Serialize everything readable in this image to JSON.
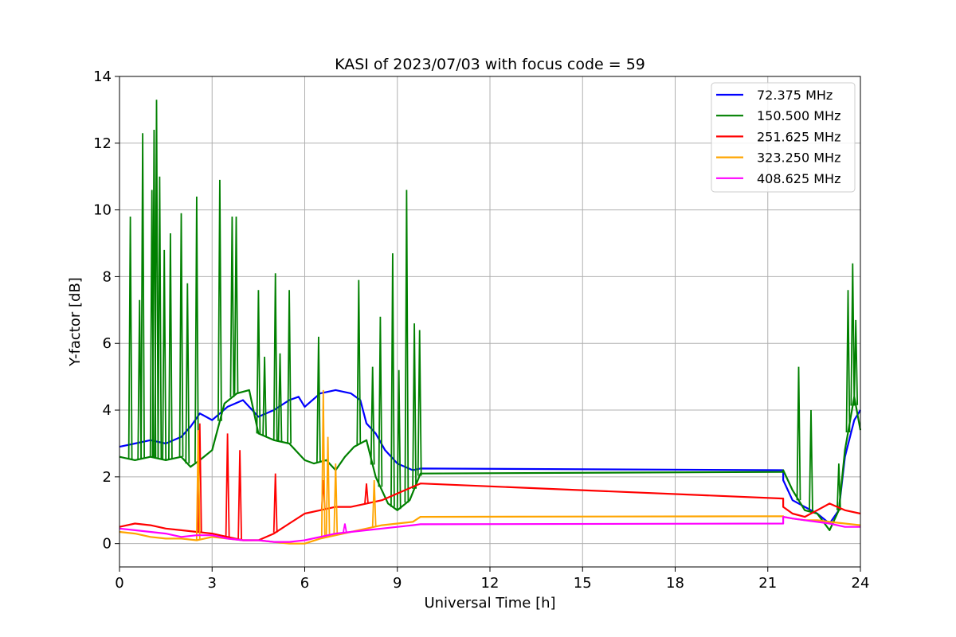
{
  "chart_data": {
    "type": "line",
    "title": "KASI of 2023/07/03 with focus code = 59",
    "xlabel": "Universal Time [h]",
    "ylabel": "Y-factor [dB]",
    "xlim": [
      0,
      24
    ],
    "ylim": [
      -0.7,
      14
    ],
    "xticks": [
      0,
      3,
      6,
      9,
      12,
      15,
      18,
      21,
      24
    ],
    "yticks": [
      0,
      2,
      4,
      6,
      8,
      10,
      12,
      14
    ],
    "grid": true,
    "legend_position": "top-right",
    "series": [
      {
        "name": " 72.375 MHz",
        "color": "#0000ff",
        "x": [
          0,
          0.5,
          1,
          1.5,
          2,
          2.3,
          2.6,
          3,
          3.5,
          4,
          4.5,
          5,
          5.5,
          5.8,
          6,
          6.5,
          7,
          7.5,
          7.8,
          8,
          8.3,
          8.6,
          9,
          9.5,
          9.75,
          21.5,
          21.5,
          21.8,
          22.2,
          22.6,
          23,
          23.3,
          23.5,
          23.8,
          24
        ],
        "y": [
          2.9,
          3.0,
          3.1,
          3.0,
          3.2,
          3.5,
          3.9,
          3.7,
          4.1,
          4.3,
          3.8,
          4.0,
          4.3,
          4.4,
          4.1,
          4.5,
          4.6,
          4.5,
          4.3,
          3.6,
          3.3,
          2.8,
          2.4,
          2.2,
          2.25,
          2.2,
          1.9,
          1.3,
          1.1,
          0.9,
          0.6,
          1.0,
          2.6,
          3.7,
          4.0
        ],
        "spikes": []
      },
      {
        "name": "150.500 MHz",
        "color": "#008000",
        "x": [
          0,
          0.5,
          1,
          1.5,
          2,
          2.3,
          2.6,
          3,
          3.4,
          3.8,
          4.2,
          4.5,
          5,
          5.5,
          6,
          6.3,
          6.7,
          7,
          7.3,
          7.6,
          8,
          8.3,
          8.7,
          9,
          9.4,
          9.75,
          21.5,
          21.5,
          21.8,
          22.2,
          22.6,
          23,
          23.3,
          23.5,
          23.8,
          24
        ],
        "y": [
          2.6,
          2.5,
          2.6,
          2.5,
          2.6,
          2.3,
          2.5,
          2.8,
          4.2,
          4.5,
          4.6,
          3.3,
          3.1,
          3.0,
          2.5,
          2.4,
          2.5,
          2.2,
          2.6,
          2.9,
          3.1,
          2.0,
          1.2,
          1.0,
          1.3,
          2.1,
          2.15,
          2.2,
          1.6,
          1.0,
          0.9,
          0.4,
          1.0,
          2.8,
          4.4,
          3.4
        ],
        "spikes": [
          [
            0.35,
            9.8
          ],
          [
            0.65,
            7.3
          ],
          [
            0.75,
            12.3
          ],
          [
            1.05,
            10.6
          ],
          [
            1.12,
            12.4
          ],
          [
            1.2,
            13.3
          ],
          [
            1.3,
            11.0
          ],
          [
            1.45,
            8.8
          ],
          [
            1.65,
            9.3
          ],
          [
            2.0,
            9.9
          ],
          [
            2.2,
            7.8
          ],
          [
            2.5,
            10.4
          ],
          [
            3.25,
            10.9
          ],
          [
            3.65,
            9.8
          ],
          [
            3.78,
            9.8
          ],
          [
            4.5,
            7.6
          ],
          [
            4.7,
            5.6
          ],
          [
            5.05,
            8.1
          ],
          [
            5.2,
            5.7
          ],
          [
            5.5,
            7.6
          ],
          [
            6.45,
            6.2
          ],
          [
            7.75,
            7.9
          ],
          [
            8.2,
            5.3
          ],
          [
            8.45,
            6.8
          ],
          [
            8.85,
            8.7
          ],
          [
            9.05,
            5.2
          ],
          [
            9.3,
            10.6
          ],
          [
            9.55,
            6.6
          ],
          [
            9.72,
            6.4
          ],
          [
            22.0,
            5.3
          ],
          [
            22.4,
            4.0
          ],
          [
            23.3,
            2.4
          ],
          [
            23.6,
            7.6
          ],
          [
            23.75,
            8.4
          ],
          [
            23.85,
            6.7
          ]
        ]
      },
      {
        "name": "251.625 MHz",
        "color": "#ff0000",
        "x": [
          0,
          0.5,
          1,
          1.5,
          2,
          2.5,
          3,
          3.5,
          4,
          4.5,
          5,
          5.5,
          6,
          6.5,
          7,
          7.5,
          8,
          8.5,
          9,
          9.5,
          9.75,
          21.5,
          21.5,
          21.8,
          22.2,
          22.6,
          23,
          23.5,
          24
        ],
        "y": [
          0.5,
          0.6,
          0.55,
          0.45,
          0.4,
          0.35,
          0.3,
          0.2,
          0.1,
          0.1,
          0.3,
          0.6,
          0.9,
          1.0,
          1.1,
          1.1,
          1.2,
          1.3,
          1.5,
          1.7,
          1.8,
          1.35,
          1.1,
          0.9,
          0.8,
          1.0,
          1.2,
          1.0,
          0.9
        ],
        "spikes": [
          [
            2.6,
            3.6
          ],
          [
            3.5,
            3.3
          ],
          [
            3.9,
            2.8
          ],
          [
            5.05,
            2.1
          ],
          [
            6.6,
            1.9
          ],
          [
            8.0,
            1.8
          ]
        ]
      },
      {
        "name": "323.250 MHz",
        "color": "#ffa500",
        "x": [
          0,
          0.5,
          1,
          1.5,
          2,
          2.5,
          3,
          3.5,
          4,
          4.5,
          5,
          5.5,
          6,
          6.5,
          7,
          7.5,
          8,
          8.5,
          9,
          9.5,
          9.75,
          21.5,
          21.5,
          21.8,
          22.2,
          22.6,
          23,
          23.5,
          24
        ],
        "y": [
          0.35,
          0.3,
          0.2,
          0.15,
          0.15,
          0.1,
          0.2,
          0.15,
          0.1,
          0.1,
          0.05,
          0.0,
          0.0,
          0.15,
          0.25,
          0.35,
          0.45,
          0.55,
          0.6,
          0.65,
          0.8,
          0.82,
          0.8,
          0.75,
          0.7,
          0.7,
          0.65,
          0.6,
          0.55
        ],
        "spikes": [
          [
            2.55,
            3.4
          ],
          [
            6.6,
            4.6
          ],
          [
            6.75,
            3.2
          ],
          [
            7.0,
            2.4
          ],
          [
            8.25,
            1.9
          ]
        ]
      },
      {
        "name": "408.625 MHz",
        "color": "#ff00ff",
        "x": [
          0,
          0.5,
          1,
          1.5,
          2,
          2.5,
          3,
          3.5,
          4,
          4.5,
          5,
          5.5,
          6,
          6.5,
          7,
          7.5,
          8,
          8.5,
          9,
          9.5,
          9.75,
          21.5,
          21.5,
          21.8,
          22.2,
          22.6,
          23,
          23.5,
          24
        ],
        "y": [
          0.45,
          0.4,
          0.35,
          0.3,
          0.2,
          0.25,
          0.25,
          0.15,
          0.1,
          0.1,
          0.05,
          0.05,
          0.1,
          0.2,
          0.3,
          0.35,
          0.4,
          0.45,
          0.5,
          0.55,
          0.58,
          0.6,
          0.8,
          0.75,
          0.7,
          0.65,
          0.6,
          0.5,
          0.5
        ],
        "spikes": [
          [
            7.3,
            0.6
          ]
        ]
      }
    ]
  }
}
